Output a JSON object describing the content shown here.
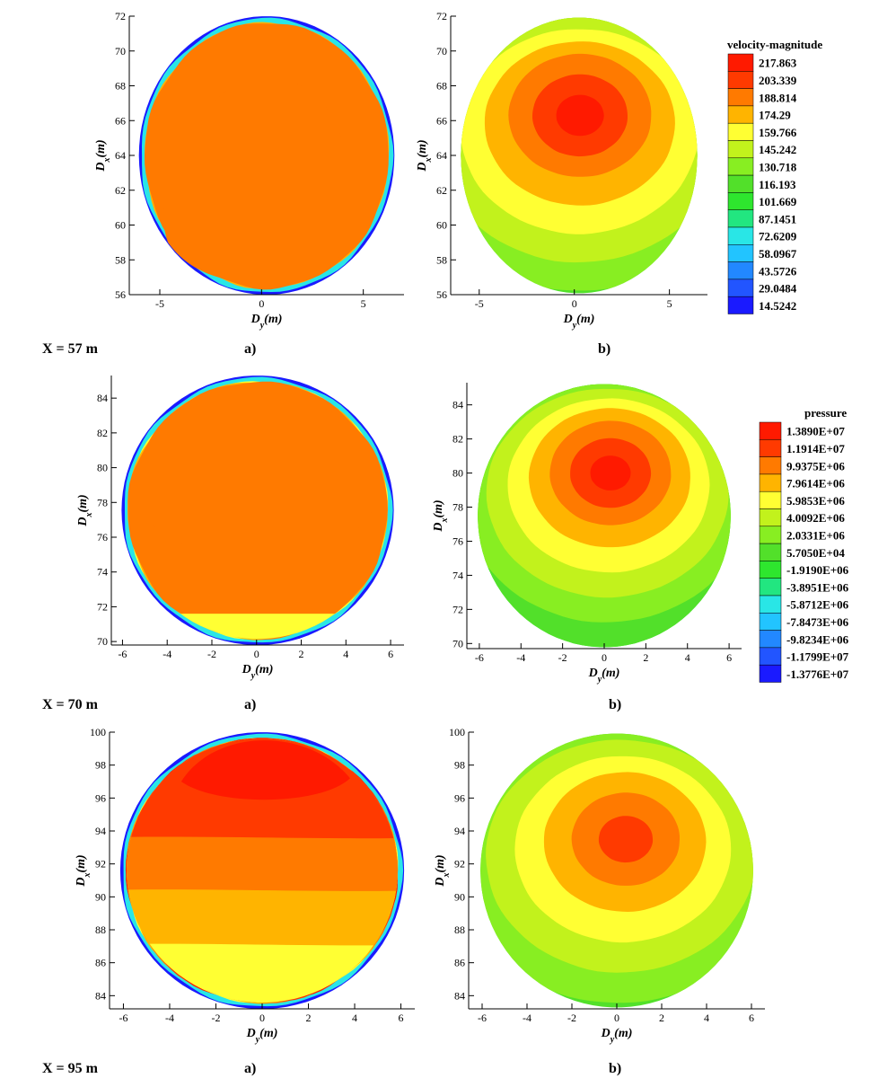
{
  "figure": {
    "rows": [
      {
        "label": "X = 57 m",
        "sub_a": "a)",
        "sub_b": "b)"
      },
      {
        "label": "X = 70 m",
        "sub_a": "a)",
        "sub_b": "b)"
      },
      {
        "label": "X = 95 m",
        "sub_a": "a)",
        "sub_b": "b)"
      }
    ]
  },
  "chart_data": [
    {
      "type": "heatmap",
      "panel": "X = 57 m a)",
      "quantity": "velocity-magnitude",
      "xlabel": "D_y(m)",
      "ylabel": "D_x(m)",
      "xlim": [
        -6.5,
        7
      ],
      "ylim": [
        56,
        72
      ],
      "xticks": [
        -5,
        0,
        5
      ],
      "yticks": [
        56,
        58,
        60,
        62,
        64,
        66,
        68,
        70,
        72
      ],
      "regions": [
        {
          "level": 0,
          "color": "#1a1aff"
        },
        {
          "level": 6,
          "color": "#29e6e6"
        },
        {
          "level": 11,
          "color": "#ffb400"
        },
        {
          "level": 12,
          "color": "#ff7a00"
        }
      ]
    },
    {
      "type": "heatmap",
      "panel": "X = 57 m b)",
      "quantity": "pressure",
      "xlabel": "D_y(m)",
      "ylabel": "D_x(m)",
      "xlim": [
        -6.5,
        7
      ],
      "ylim": [
        56,
        72
      ],
      "xticks": [
        -5,
        0,
        5
      ],
      "yticks": [
        56,
        58,
        60,
        62,
        64,
        66,
        68,
        70,
        72
      ],
      "gradient_center": [
        0.3,
        66.3
      ],
      "levels_outer_to_inner": [
        "#52e02a",
        "#88ee22",
        "#c2f21c",
        "#ffff33",
        "#ffb400",
        "#ff7a00",
        "#ff3a00",
        "#ff1a00"
      ]
    },
    {
      "type": "heatmap",
      "panel": "X = 70 m a)",
      "quantity": "velocity-magnitude",
      "xlabel": "D_y(m)",
      "ylabel": "D_x(m)",
      "xlim": [
        -6.5,
        6.6
      ],
      "ylim": [
        69.8,
        85.3
      ],
      "xticks": [
        -6,
        -4,
        -2,
        0,
        2,
        4,
        6
      ],
      "yticks": [
        70,
        72,
        74,
        76,
        78,
        80,
        82,
        84
      ],
      "regions": [
        {
          "level": 0,
          "color": "#1a1aff"
        },
        {
          "level": 6,
          "color": "#29e6e6"
        },
        {
          "level": 10,
          "color": "#ffff33"
        },
        {
          "level": 11,
          "color": "#ffb400"
        },
        {
          "level": 12,
          "color": "#ff7a00"
        }
      ]
    },
    {
      "type": "heatmap",
      "panel": "X = 70 m b)",
      "quantity": "pressure",
      "xlabel": "D_y(m)",
      "ylabel": "D_x(m)",
      "xlim": [
        -6.6,
        6.6
      ],
      "ylim": [
        69.7,
        85.3
      ],
      "xticks": [
        -6,
        -4,
        -2,
        0,
        2,
        4,
        6
      ],
      "yticks": [
        70,
        72,
        74,
        76,
        78,
        80,
        82,
        84
      ],
      "gradient_center": [
        0.3,
        80.0
      ],
      "levels_outer_to_inner": [
        "#2ee62e",
        "#52e02a",
        "#88ee22",
        "#c2f21c",
        "#ffff33",
        "#ffb400",
        "#ff7a00",
        "#ff3a00",
        "#ff1a00"
      ]
    },
    {
      "type": "heatmap",
      "panel": "X = 95 m a)",
      "quantity": "velocity-magnitude",
      "xlabel": "D_y(m)",
      "ylabel": "D_x(m)",
      "xlim": [
        -6.6,
        6.6
      ],
      "ylim": [
        83.2,
        100
      ],
      "xticks": [
        -6,
        -4,
        -2,
        0,
        2,
        4,
        6
      ],
      "yticks": [
        84,
        86,
        88,
        90,
        92,
        94,
        96,
        98,
        100
      ],
      "regions": [
        {
          "level": 0,
          "color": "#1a1aff"
        },
        {
          "level": 6,
          "color": "#29e6e6"
        },
        {
          "level": 10,
          "color": "#ffff33"
        },
        {
          "level": 11,
          "color": "#ffb400"
        },
        {
          "level": 12,
          "color": "#ff7a00"
        },
        {
          "level": 13,
          "color": "#ff3a00"
        },
        {
          "level": 14,
          "color": "#ff1a00"
        }
      ]
    },
    {
      "type": "heatmap",
      "panel": "X = 95 m b)",
      "quantity": "pressure",
      "xlabel": "D_y(m)",
      "ylabel": "D_x(m)",
      "xlim": [
        -6.6,
        6.6
      ],
      "ylim": [
        83.2,
        100
      ],
      "xticks": [
        -6,
        -4,
        -2,
        0,
        2,
        4,
        6
      ],
      "yticks": [
        84,
        86,
        88,
        90,
        92,
        94,
        96,
        98,
        100
      ],
      "gradient_center": [
        0.4,
        93.5
      ],
      "levels_outer_to_inner": [
        "#52e02a",
        "#88ee22",
        "#c2f21c",
        "#ffff33",
        "#ffb400",
        "#ff7a00",
        "#ff3a00"
      ]
    }
  ],
  "legends": {
    "velocity": {
      "title": "velocity-magnitude",
      "levels": [
        "217.863",
        "203.339",
        "188.814",
        "174.29",
        "159.766",
        "145.242",
        "130.718",
        "116.193",
        "101.669",
        "87.1451",
        "72.6209",
        "58.0967",
        "43.5726",
        "29.0484",
        "14.5242"
      ],
      "colors": [
        "#ff1a00",
        "#ff3a00",
        "#ff7a00",
        "#ffb400",
        "#ffff33",
        "#c2f21c",
        "#88ee22",
        "#52e02a",
        "#2ee62e",
        "#22e680",
        "#29e6e6",
        "#22c4ff",
        "#2288ff",
        "#2255ff",
        "#1a1aff"
      ]
    },
    "pressure": {
      "title": "pressure",
      "levels": [
        "1.3890E+07",
        "1.1914E+07",
        "9.9375E+06",
        "7.9614E+06",
        "5.9853E+06",
        "4.0092E+06",
        "2.0331E+06",
        "5.7050E+04",
        "-1.9190E+06",
        "-3.8951E+06",
        "-5.8712E+06",
        "-7.8473E+06",
        "-9.8234E+06",
        "-1.1799E+07",
        "-1.3776E+07"
      ],
      "colors": [
        "#ff1a00",
        "#ff3a00",
        "#ff7a00",
        "#ffb400",
        "#ffff33",
        "#c2f21c",
        "#88ee22",
        "#52e02a",
        "#2ee62e",
        "#22e680",
        "#29e6e6",
        "#22c4ff",
        "#2288ff",
        "#2255ff",
        "#1a1aff"
      ]
    }
  }
}
